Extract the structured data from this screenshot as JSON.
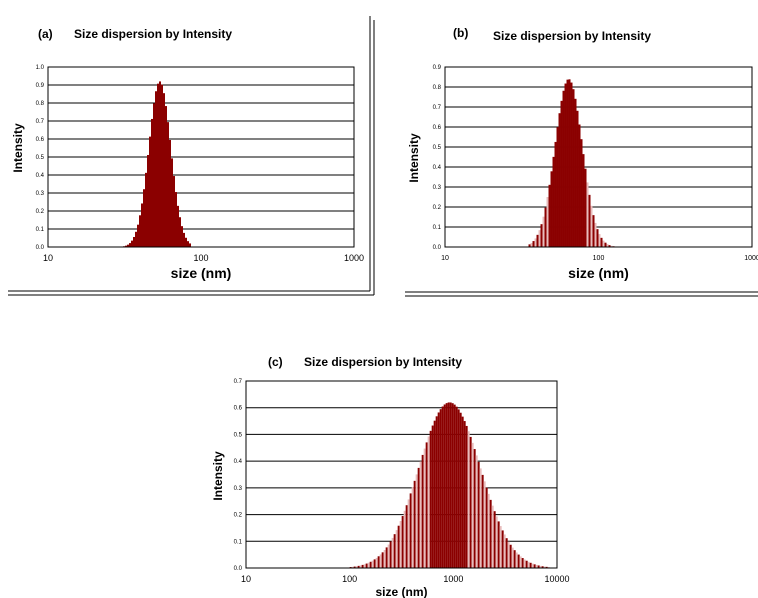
{
  "chart_data": [
    {
      "type": "bar",
      "panel": "(a)",
      "title": "Size dispersion by Intensity",
      "xlabel": "size (nm)",
      "ylabel": "Intensity",
      "x_scale": "log",
      "xlim": [
        10,
        1000
      ],
      "ylim": [
        0,
        1.0
      ],
      "x_ticks": [
        10,
        100,
        1000
      ],
      "x_tick_labels": [
        "10",
        "100",
        "1000"
      ],
      "y_ticks": [
        0,
        0.1,
        0.2,
        0.3,
        0.4,
        0.5,
        0.6,
        0.7,
        0.8,
        0.9,
        1.0
      ],
      "y_tick_labels": [
        "0.0",
        "0.1",
        "0.2",
        "0.3",
        "0.4",
        "0.5",
        "0.6",
        "0.7",
        "0.8",
        "0.9",
        "1.0"
      ],
      "grid": "horizontal",
      "color": "#8b0000",
      "peak_nm": 53,
      "peak_intensity": 0.92,
      "range_nm": [
        30,
        85
      ],
      "x": [
        30,
        32,
        34,
        36,
        38,
        40,
        42,
        44,
        46,
        48,
        50,
        52,
        54,
        56,
        58,
        60,
        63,
        66,
        70,
        75,
        80,
        85
      ],
      "values": [
        0.01,
        0.02,
        0.04,
        0.08,
        0.15,
        0.26,
        0.4,
        0.57,
        0.72,
        0.84,
        0.9,
        0.92,
        0.91,
        0.85,
        0.75,
        0.62,
        0.45,
        0.3,
        0.16,
        0.06,
        0.02,
        0.005
      ]
    },
    {
      "type": "bar",
      "panel": "(b)",
      "title": "Size dispersion by Intensity",
      "xlabel": "size (nm)",
      "ylabel": "Intensity",
      "x_scale": "log",
      "xlim": [
        10,
        1000
      ],
      "ylim": [
        0,
        0.9
      ],
      "x_ticks": [
        10,
        100,
        1000
      ],
      "x_tick_labels": [
        "10",
        "100",
        "1000"
      ],
      "y_ticks": [
        0,
        0.1,
        0.2,
        0.3,
        0.4,
        0.5,
        0.6,
        0.7,
        0.8,
        0.9
      ],
      "y_tick_labels": [
        "0.0",
        "0.1",
        "0.2",
        "0.3",
        "0.4",
        "0.5",
        "0.6",
        "0.7",
        "0.8",
        "0.9"
      ],
      "grid": "horizontal",
      "color": "#8b0000",
      "peak_nm": 63,
      "peak_intensity": 0.84,
      "range_nm": [
        35,
        140
      ],
      "x": [
        35,
        40,
        45,
        50,
        55,
        60,
        63,
        66,
        70,
        75,
        80,
        85,
        90,
        100,
        110,
        120,
        130,
        140
      ],
      "values": [
        0.01,
        0.05,
        0.17,
        0.38,
        0.6,
        0.78,
        0.84,
        0.83,
        0.77,
        0.63,
        0.48,
        0.35,
        0.24,
        0.11,
        0.05,
        0.02,
        0.01,
        0.005
      ]
    },
    {
      "type": "bar",
      "panel": "(c)",
      "title": "Size dispersion by Intensity",
      "xlabel": "size (nm)",
      "ylabel": "Intensity",
      "x_scale": "log",
      "xlim": [
        10,
        10000
      ],
      "ylim": [
        0,
        0.7
      ],
      "x_ticks": [
        10,
        100,
        1000,
        10000
      ],
      "x_tick_labels": [
        "10",
        "100",
        "1000",
        "10000"
      ],
      "y_ticks": [
        0,
        0.1,
        0.2,
        0.3,
        0.4,
        0.5,
        0.6,
        0.7
      ],
      "y_tick_labels": [
        "0.0",
        "0.1",
        "0.2",
        "0.3",
        "0.4",
        "0.5",
        "0.6",
        "0.7"
      ],
      "grid": "horizontal",
      "color": "#8b0000",
      "peak_nm": 900,
      "peak_intensity": 0.62,
      "range_nm": [
        100,
        9000
      ],
      "x": [
        100,
        150,
        200,
        300,
        400,
        500,
        600,
        700,
        800,
        900,
        1000,
        1200,
        1500,
        2000,
        3000,
        4000,
        6000,
        9000
      ],
      "values": [
        0.005,
        0.02,
        0.05,
        0.14,
        0.26,
        0.38,
        0.49,
        0.57,
        0.61,
        0.62,
        0.61,
        0.57,
        0.48,
        0.35,
        0.18,
        0.09,
        0.03,
        0.005
      ]
    }
  ]
}
